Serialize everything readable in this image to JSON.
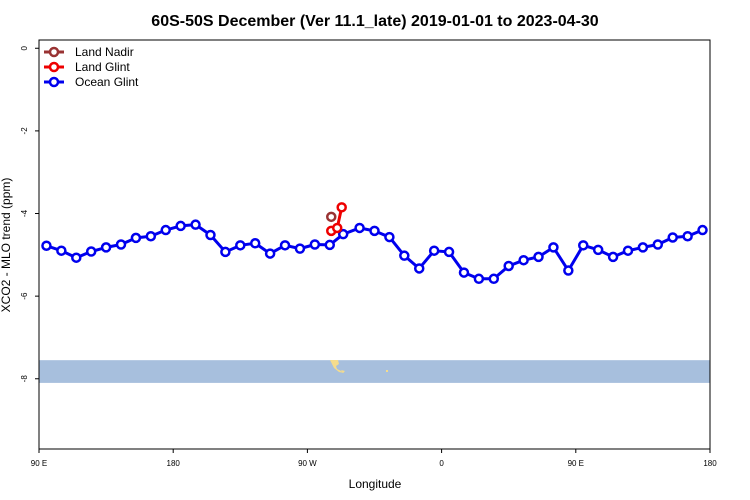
{
  "chart_data": {
    "type": "line",
    "title": "60S-50S December (Ver 11.1_late)   2019-01-01 to 2023-04-30",
    "xlabel": "Longitude",
    "ylabel": "XCO2 - MLO trend (ppm)",
    "xlim": [
      90,
      540
    ],
    "ylim": [
      -9.7,
      0.2
    ],
    "x_ticks": [
      {
        "value": 90,
        "label": "90 E"
      },
      {
        "value": 180,
        "label": "180"
      },
      {
        "value": 270,
        "label": "90 W"
      },
      {
        "value": 360,
        "label": "0"
      },
      {
        "value": 450,
        "label": "90 E"
      },
      {
        "value": 540,
        "label": "180"
      }
    ],
    "y_ticks": [
      {
        "value": 0,
        "label": "0"
      },
      {
        "value": -2,
        "label": "-2"
      },
      {
        "value": -4,
        "label": "-4"
      },
      {
        "value": -6,
        "label": "-6"
      },
      {
        "value": -8,
        "label": "-8"
      }
    ],
    "legend_position": "top-left",
    "grid": false,
    "series": [
      {
        "name": "Land Nadir",
        "color": "#993333",
        "x": [
          286
        ],
        "y": [
          -4.08
        ]
      },
      {
        "name": "Land Glint",
        "color": "#ee0000",
        "x": [
          286,
          290,
          293
        ],
        "y": [
          -4.42,
          -4.35,
          -3.85
        ]
      },
      {
        "name": "Ocean Glint",
        "color": "#0000ee",
        "x": [
          95,
          105,
          115,
          125,
          135,
          145,
          155,
          165,
          175,
          185,
          195,
          205,
          215,
          225,
          235,
          245,
          255,
          265,
          275,
          285,
          294,
          305,
          315,
          325,
          335,
          345,
          355,
          365,
          375,
          385,
          395,
          405,
          415,
          425,
          435,
          445,
          455,
          465,
          475,
          485,
          495,
          505,
          515,
          525,
          535
        ],
        "y": [
          -4.78,
          -4.9,
          -5.07,
          -4.92,
          -4.82,
          -4.75,
          -4.59,
          -4.55,
          -4.4,
          -4.3,
          -4.27,
          -4.52,
          -4.93,
          -4.77,
          -4.72,
          -4.97,
          -4.77,
          -4.85,
          -4.75,
          -4.76,
          -4.5,
          -4.35,
          -4.42,
          -4.57,
          -5.02,
          -5.33,
          -4.9,
          -4.93,
          -5.43,
          -5.58,
          -5.58,
          -5.27,
          -5.13,
          -5.05,
          -4.82,
          -5.38,
          -4.77,
          -4.88,
          -5.05,
          -4.9,
          -4.82,
          -4.75,
          -4.58,
          -4.55,
          -4.4
        ]
      }
    ]
  },
  "map_strip": {
    "sea_color": "#a7bfdd",
    "land_color": "#f5dc8c",
    "y_range": [
      -8.1,
      -7.55
    ]
  }
}
